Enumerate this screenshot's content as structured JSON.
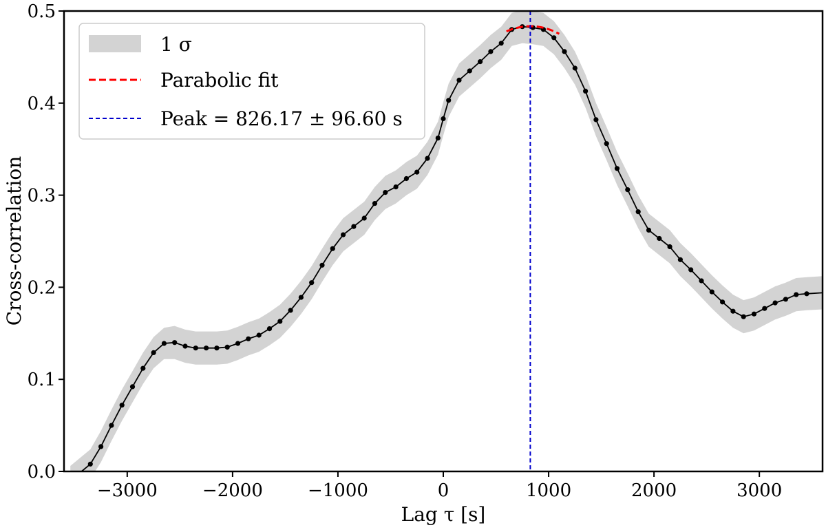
{
  "chart_data": {
    "type": "line",
    "title": "",
    "xlabel": "Lag τ [s]",
    "ylabel": "Cross-correlation",
    "xlim": [
      -3600,
      3600
    ],
    "ylim": [
      0.0,
      0.5
    ],
    "x_ticks": [
      -3000,
      -2000,
      -1000,
      0,
      1000,
      2000,
      3000
    ],
    "x_tick_labels": [
      "−3000",
      "−2000",
      "−1000",
      "0",
      "1000",
      "2000",
      "3000"
    ],
    "y_ticks": [
      0.0,
      0.1,
      0.2,
      0.3,
      0.4,
      0.5
    ],
    "y_tick_labels": [
      "0.0",
      "0.1",
      "0.2",
      "0.3",
      "0.4",
      "0.5"
    ],
    "grid": false,
    "legend_position": "top-left",
    "legend": [
      {
        "label": "1 σ",
        "kind": "band",
        "color": "#d3d3d3"
      },
      {
        "label": "Parabolic fit",
        "kind": "dashed-line",
        "color": "#ff0000"
      },
      {
        "label": "Peak = 826.17 ± 96.60 s",
        "kind": "dashed-line",
        "color": "#0000cc"
      }
    ],
    "peak": 826.17,
    "peak_error": 96.6,
    "colors": {
      "line": "#000000",
      "band": "#d3d3d3",
      "fit": "#ff0000",
      "peak": "#0000cc"
    },
    "series": [
      {
        "name": "Cross-correlation",
        "x": [
          -3540,
          -3350,
          -3250,
          -3150,
          -3050,
          -2950,
          -2850,
          -2750,
          -2650,
          -2550,
          -2450,
          -2350,
          -2250,
          -2150,
          -2050,
          -1950,
          -1850,
          -1750,
          -1650,
          -1550,
          -1450,
          -1350,
          -1250,
          -1150,
          -1050,
          -950,
          -850,
          -750,
          -650,
          -550,
          -450,
          -350,
          -250,
          -150,
          -50,
          0,
          50,
          150,
          250,
          350,
          450,
          550,
          650,
          750,
          850,
          950,
          1050,
          1150,
          1250,
          1350,
          1450,
          1550,
          1650,
          1750,
          1850,
          1950,
          2050,
          2150,
          2250,
          2350,
          2450,
          2550,
          2650,
          2750,
          2850,
          2950,
          3050,
          3150,
          3250,
          3350,
          3450,
          3600
        ],
        "y": [
          -0.01,
          0.008,
          0.027,
          0.05,
          0.072,
          0.092,
          0.112,
          0.129,
          0.139,
          0.14,
          0.136,
          0.134,
          0.134,
          0.134,
          0.135,
          0.139,
          0.144,
          0.148,
          0.155,
          0.163,
          0.175,
          0.189,
          0.205,
          0.224,
          0.242,
          0.257,
          0.266,
          0.275,
          0.291,
          0.303,
          0.309,
          0.318,
          0.325,
          0.34,
          0.362,
          0.383,
          0.403,
          0.425,
          0.435,
          0.445,
          0.456,
          0.465,
          0.48,
          0.483,
          0.482,
          0.48,
          0.471,
          0.456,
          0.438,
          0.413,
          0.382,
          0.356,
          0.329,
          0.306,
          0.282,
          0.262,
          0.253,
          0.244,
          0.23,
          0.219,
          0.207,
          0.195,
          0.184,
          0.174,
          0.168,
          0.171,
          0.177,
          0.183,
          0.187,
          0.192,
          0.193,
          0.194
        ],
        "markers_x": [
          -3350,
          -3250,
          -3150,
          -3050,
          -2950,
          -2850,
          -2750,
          -2650,
          -2550,
          -2450,
          -2350,
          -2250,
          -2150,
          -2050,
          -1950,
          -1850,
          -1750,
          -1650,
          -1550,
          -1450,
          -1350,
          -1250,
          -1150,
          -1050,
          -950,
          -850,
          -750,
          -650,
          -550,
          -450,
          -350,
          -250,
          -150,
          -50,
          0,
          50,
          150,
          250,
          350,
          450,
          550,
          650,
          750,
          850,
          950,
          1050,
          1150,
          1250,
          1350,
          1450,
          1550,
          1650,
          1750,
          1850,
          1950,
          2050,
          2150,
          2250,
          2350,
          2450,
          2550,
          2650,
          2750,
          2850,
          2950,
          3050,
          3150,
          3250,
          3350,
          3450
        ],
        "band_halfwidth": [
          0.016,
          0.016,
          0.017,
          0.017,
          0.017,
          0.017,
          0.017,
          0.017,
          0.017,
          0.018,
          0.018,
          0.018,
          0.018,
          0.018,
          0.018,
          0.018,
          0.018,
          0.018,
          0.018,
          0.018,
          0.018,
          0.018,
          0.018,
          0.018,
          0.018,
          0.018,
          0.018,
          0.018,
          0.018,
          0.018,
          0.018,
          0.018,
          0.018,
          0.018,
          0.018,
          0.018,
          0.018,
          0.018,
          0.018,
          0.018,
          0.018,
          0.018,
          0.018,
          0.018,
          0.018,
          0.018,
          0.018,
          0.018,
          0.018,
          0.018,
          0.018,
          0.018,
          0.018,
          0.018,
          0.018,
          0.018,
          0.018,
          0.018,
          0.018,
          0.018,
          0.018,
          0.018,
          0.018,
          0.018,
          0.018,
          0.018,
          0.018,
          0.018,
          0.018,
          0.018,
          0.018,
          0.018
        ]
      }
    ],
    "fit": {
      "x_range": [
        600,
        1100
      ],
      "a": -1.1e-07,
      "vertex_y": 0.4835
    }
  }
}
